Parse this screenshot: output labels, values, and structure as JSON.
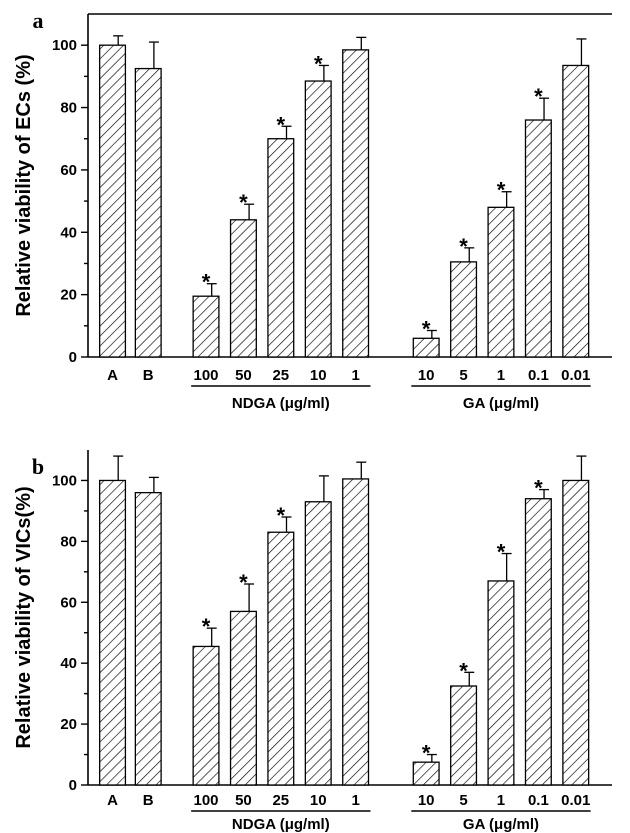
{
  "chart_data": [
    {
      "type": "bar",
      "panel_label": "a",
      "ylabel": "Relative viability of ECs (%)",
      "ylim": [
        0,
        110
      ],
      "yticks": [
        "0",
        "20",
        "40",
        "60",
        "80",
        "100"
      ],
      "categories": [
        "A",
        "B",
        "100",
        "50",
        "25",
        "10",
        "1",
        "10",
        "5",
        "1",
        "0.1",
        "0.01"
      ],
      "values": [
        100,
        92.5,
        19.5,
        44,
        70,
        88.5,
        98.5,
        6,
        30.5,
        48,
        76,
        93.5
      ],
      "errors": [
        3,
        8.5,
        4,
        5,
        4,
        5,
        4,
        2.5,
        4.5,
        5,
        7,
        8.5
      ],
      "significant": [
        false,
        false,
        true,
        true,
        true,
        true,
        false,
        true,
        true,
        true,
        true,
        false
      ],
      "groups": [
        {
          "label": "NDGA (μg/ml)",
          "start": 2,
          "end": 6
        },
        {
          "label": "GA (μg/ml)",
          "start": 7,
          "end": 11
        }
      ],
      "star_symbol": "*",
      "top_border": true
    },
    {
      "type": "bar",
      "panel_label": "b",
      "ylabel": "Relative viability of VICs(%)",
      "ylim": [
        0,
        110
      ],
      "yticks": [
        "0",
        "20",
        "40",
        "60",
        "80",
        "100"
      ],
      "categories": [
        "A",
        "B",
        "100",
        "50",
        "25",
        "10",
        "1",
        "10",
        "5",
        "1",
        "0.1",
        "0.01"
      ],
      "values": [
        100,
        96,
        45.5,
        57,
        83,
        93,
        100.5,
        7.5,
        32.5,
        67,
        94,
        100
      ],
      "errors": [
        8,
        5,
        6,
        9,
        5,
        8.5,
        5.5,
        2.5,
        4.5,
        9,
        3,
        8
      ],
      "significant": [
        false,
        false,
        true,
        true,
        true,
        false,
        false,
        true,
        true,
        true,
        true,
        false
      ],
      "groups": [
        {
          "label": "NDGA (μg/ml)",
          "start": 2,
          "end": 6
        },
        {
          "label": "GA (μg/ml)",
          "start": 7,
          "end": 11
        }
      ],
      "star_symbol": "*",
      "top_border": false
    }
  ]
}
